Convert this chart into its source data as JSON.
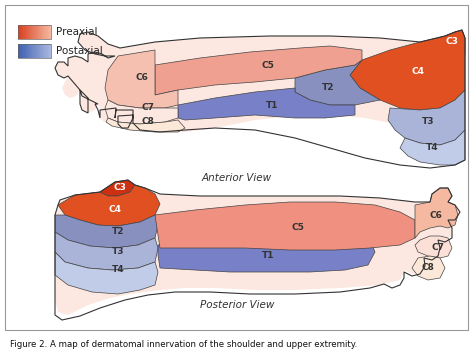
{
  "figure_caption": "Figure 2. A map of dermatomal innervation of the shoulder and upper extremity.",
  "legend": [
    {
      "label": "Preaxial",
      "color_dark": "#d94020",
      "color_light": "#f0a090"
    },
    {
      "label": "Postaxial",
      "color_dark": "#4060b0",
      "color_light": "#a8b8e0"
    }
  ],
  "background": "#ffffff",
  "anterior_label": "Anterior View",
  "posterior_label": "Posterior View",
  "ant_colors": {
    "C3": "#cc3010",
    "C4": "#e05020",
    "C5": "#f0a090",
    "C6": "#f5c0b0",
    "C7": "#fce8e0",
    "C8": "#fce8d8",
    "T1": "#7880c8",
    "T2": "#8890c0",
    "T3": "#aab4d8",
    "T4": "#c0cce8"
  },
  "post_colors": {
    "C3": "#cc3010",
    "C4": "#e05020",
    "C5": "#f09080",
    "C6": "#f5b8a0",
    "C7": "#fce0d8",
    "C8": "#fce8d8",
    "T1": "#7880c8",
    "T2": "#8890c0",
    "T3": "#aab4d8",
    "T4": "#c0cce8"
  }
}
